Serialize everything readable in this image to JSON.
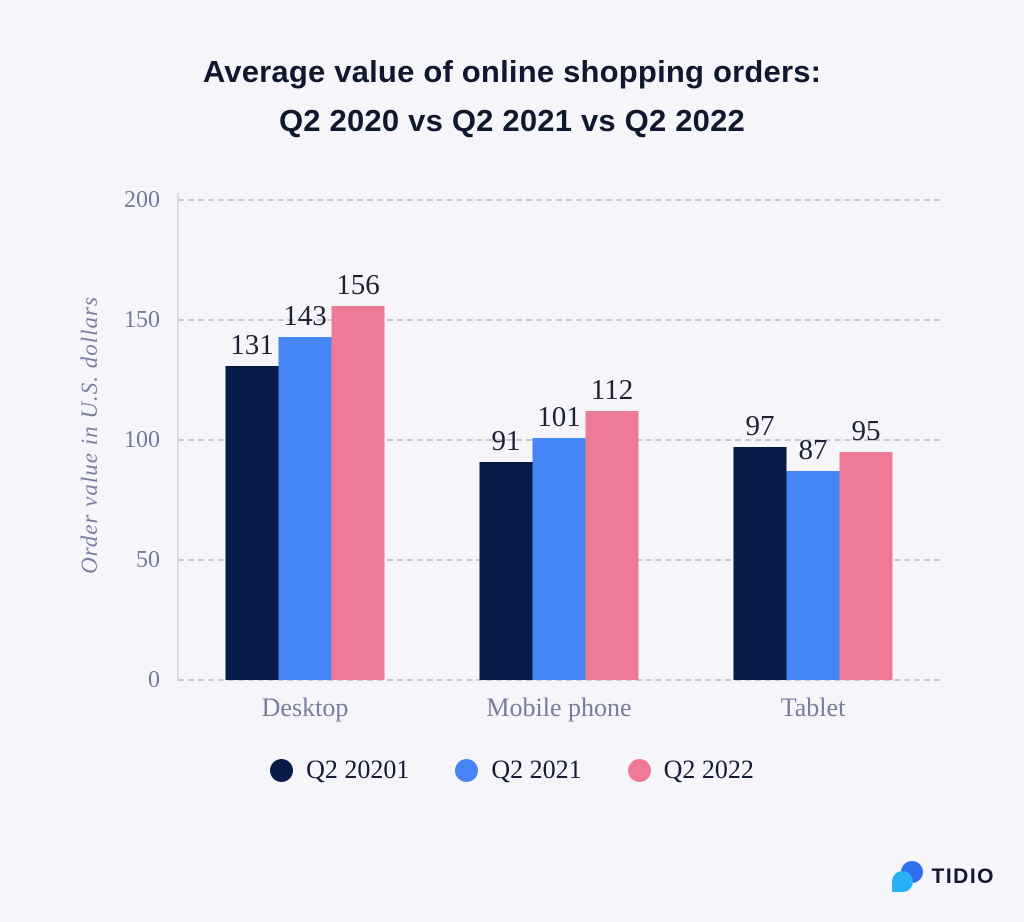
{
  "title": {
    "line1": "Average value of online shopping orders:",
    "line2": "Q2 2020 vs Q2 2021 vs Q2 2022"
  },
  "chart_data": {
    "type": "bar",
    "title": "Average value of online shopping orders: Q2 2020 vs Q2 2021 vs Q2 2022",
    "categories": [
      "Desktop",
      "Mobile phone",
      "Tablet"
    ],
    "series": [
      {
        "name": "Q2 20201",
        "color": "#071b47",
        "values": [
          131,
          91,
          97
        ]
      },
      {
        "name": "Q2 2021",
        "color": "#4685f6",
        "values": [
          143,
          101,
          87
        ]
      },
      {
        "name": "Q2 2022",
        "color": "#ee7a95",
        "values": [
          156,
          112,
          95
        ]
      }
    ],
    "xlabel": "",
    "ylabel": "Order value in U.S. dollars",
    "ylim": [
      0,
      200
    ],
    "yticks": [
      0,
      50,
      100,
      150,
      200
    ],
    "grid": "horizontal-dashed",
    "legend_position": "bottom",
    "value_labels": true
  },
  "branding": {
    "logo_text": "TIDIO",
    "icon_color_dark": "#2d6ff1",
    "icon_color_light": "#28b1f5"
  },
  "colors": {
    "background": "#f6f6fa",
    "title": "#101830",
    "axis_text": "#757a9a",
    "value_label": "#1d2335",
    "gridline": "#c5c8d7"
  }
}
